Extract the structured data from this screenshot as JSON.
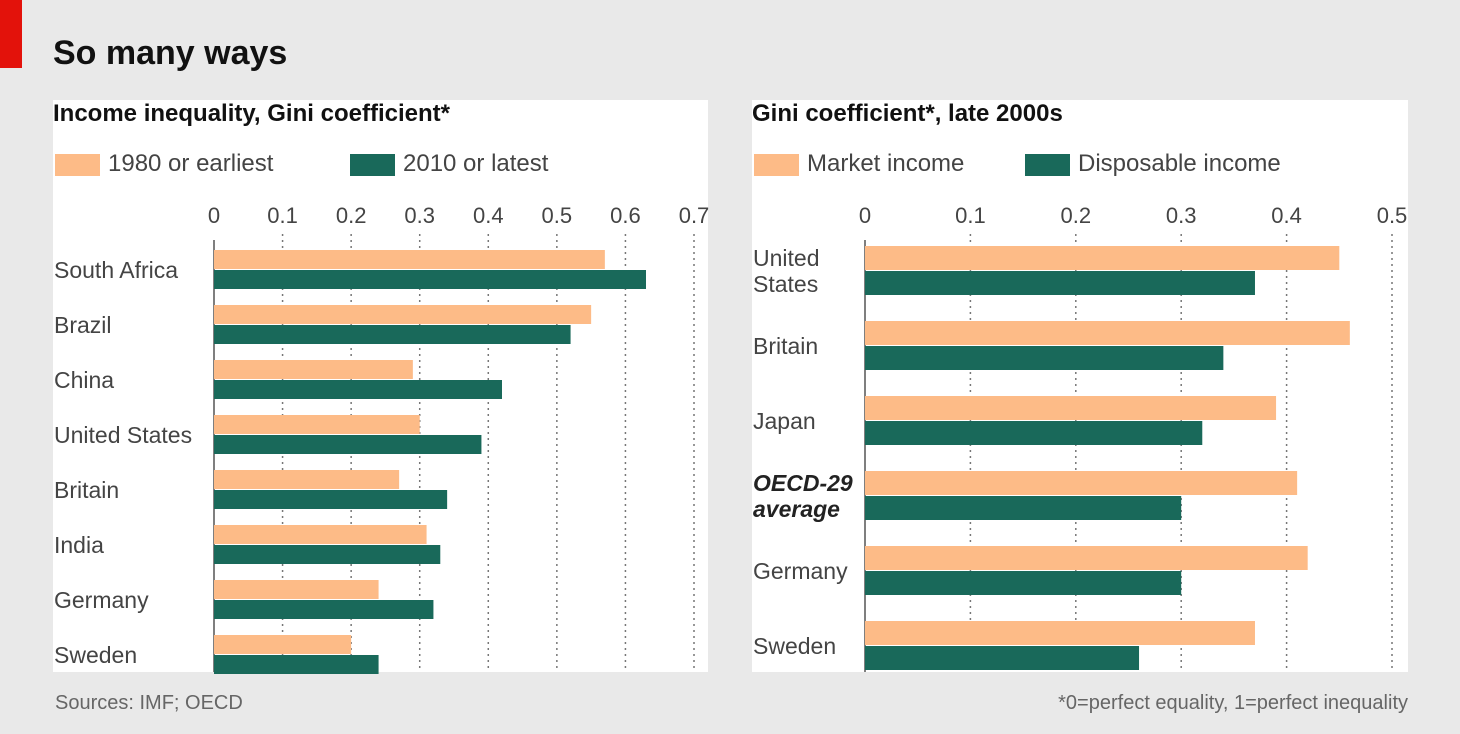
{
  "title": "So many ways",
  "source": "Sources: IMF; OECD",
  "footnote": "*0=perfect equality, 1=perfect inequality",
  "chart_data": [
    {
      "type": "bar",
      "orientation": "horizontal",
      "title": "Income inequality, Gini coefficient*",
      "categories": [
        "South Africa",
        "Brazil",
        "China",
        "United States",
        "Britain",
        "India",
        "Germany",
        "Sweden"
      ],
      "series": [
        {
          "name": "1980 or earliest",
          "color": "#fdbb87",
          "values": [
            0.57,
            0.55,
            0.29,
            0.3,
            0.27,
            0.31,
            0.24,
            0.2
          ]
        },
        {
          "name": "2010 or latest",
          "color": "#19695a",
          "values": [
            0.63,
            0.52,
            0.42,
            0.39,
            0.34,
            0.33,
            0.32,
            0.24
          ]
        }
      ],
      "xlim": [
        0,
        0.7
      ],
      "xticks": [
        0,
        0.1,
        0.2,
        0.3,
        0.4,
        0.5,
        0.6,
        0.7
      ],
      "grid": true
    },
    {
      "type": "bar",
      "orientation": "horizontal",
      "title": "Gini coefficient*, late 2000s",
      "categories": [
        "United States",
        "Britain",
        "Japan",
        "OECD-29 average",
        "Germany",
        "Sweden"
      ],
      "highlight_categories": [
        3
      ],
      "series": [
        {
          "name": "Market income",
          "color": "#fdbb87",
          "values": [
            0.45,
            0.46,
            0.39,
            0.41,
            0.42,
            0.37
          ]
        },
        {
          "name": "Disposable income",
          "color": "#19695a",
          "values": [
            0.37,
            0.34,
            0.32,
            0.3,
            0.3,
            0.26
          ]
        }
      ],
      "xlim": [
        0,
        0.5
      ],
      "xticks": [
        0,
        0.1,
        0.2,
        0.3,
        0.4,
        0.5
      ],
      "grid": true
    }
  ]
}
